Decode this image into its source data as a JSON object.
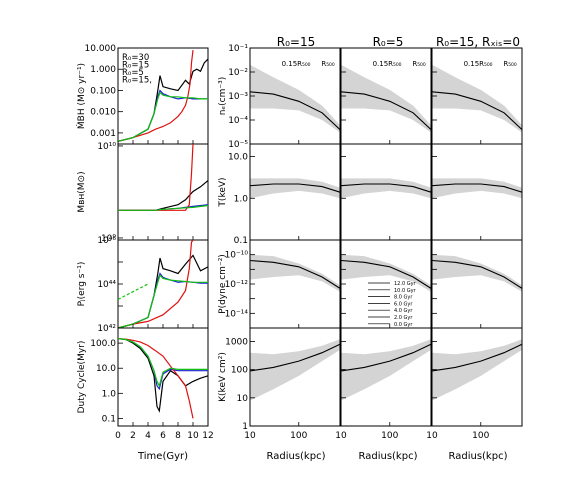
{
  "figure": {
    "column_titles": [
      "R₀=15",
      "R₀=5",
      "R₀=15,  Rₓᵢₛ=0"
    ],
    "left_xlabel": "Time(Gyr)",
    "right_xlabel": "Radius(kpc)",
    "marker_labels": [
      "0.15R₅₀₀",
      "R₅₀₀"
    ]
  },
  "chart_data": [
    {
      "type": "line",
      "panel": "mdot-bh",
      "ylabel": "ṀBH (M⊙ yr⁻¹)",
      "xlim": [
        0,
        12
      ],
      "ylim": [
        0.0003,
        10
      ],
      "yscale": "log",
      "xticks": [
        "0",
        "2",
        "4",
        "6",
        "8",
        "10",
        "12"
      ],
      "yticks": [
        "0.001",
        "0.010",
        "0.100",
        "1.000",
        "10.000"
      ],
      "legend": [
        "R₀=30",
        "R₀=15",
        "R₀=5",
        "R₀=15,"
      ],
      "series": [
        {
          "name": "R₀=30",
          "color": "#000000",
          "x": [
            0,
            2,
            4,
            4.8,
            5.3,
            5.6,
            6,
            7,
            8,
            9,
            9.5,
            10,
            10.5,
            11,
            11.5,
            12
          ],
          "y": [
            0.0004,
            0.0006,
            0.0015,
            0.008,
            0.1,
            0.5,
            0.15,
            0.12,
            0.1,
            0.3,
            0.2,
            0.8,
            1,
            0.8,
            2,
            3
          ]
        },
        {
          "name": "R₀=15",
          "color": "#1f1fd6",
          "x": [
            0,
            2,
            4,
            4.8,
            5.3,
            5.6,
            6,
            7,
            8,
            9,
            10,
            11,
            12
          ],
          "y": [
            0.0004,
            0.0006,
            0.0015,
            0.008,
            0.05,
            0.1,
            0.07,
            0.05,
            0.04,
            0.045,
            0.04,
            0.04,
            0.04
          ]
        },
        {
          "name": "R₀=5",
          "color": "#e01010",
          "x": [
            0,
            2,
            4,
            5,
            6,
            7,
            8,
            8.5,
            9,
            9.3,
            9.6,
            9.8,
            10
          ],
          "y": [
            0.0004,
            0.0006,
            0.001,
            0.0015,
            0.002,
            0.003,
            0.006,
            0.01,
            0.02,
            0.05,
            0.2,
            2,
            8
          ]
        },
        {
          "name": "R₀=15,",
          "color": "#10c010",
          "x": [
            0,
            2,
            4,
            4.8,
            5.3,
            5.6,
            6,
            7,
            8,
            9,
            10,
            11,
            12
          ],
          "y": [
            0.0004,
            0.0006,
            0.0015,
            0.008,
            0.04,
            0.08,
            0.06,
            0.05,
            0.05,
            0.045,
            0.045,
            0.04,
            0.04
          ]
        }
      ]
    },
    {
      "type": "line",
      "panel": "m-bh",
      "ylabel": "Mʙʜ(M⊙)",
      "xlim": [
        0,
        12
      ],
      "yscale": "log",
      "yticks": [
        "10⁹",
        "10¹⁰"
      ],
      "series": [
        {
          "name": "R₀=30",
          "color": "#000000",
          "x": [
            0,
            5,
            6,
            8,
            9,
            10,
            11,
            12
          ],
          "y": [
            2000000000.0,
            2000000000.0,
            2100000000.0,
            2300000000.0,
            2600000000.0,
            3200000000.0,
            3600000000.0,
            4200000000.0
          ]
        },
        {
          "name": "R₀=15",
          "color": "#1f1fd6",
          "x": [
            0,
            5,
            6,
            8,
            10,
            12
          ],
          "y": [
            2000000000.0,
            2000000000.0,
            2050000000.0,
            2100000000.0,
            2200000000.0,
            2300000000.0
          ]
        },
        {
          "name": "R₀=5",
          "color": "#e01010",
          "x": [
            0,
            9,
            9.5,
            9.8,
            10
          ],
          "y": [
            2000000000.0,
            2000000000.0,
            2300000000.0,
            5000000000.0,
            12000000000.0
          ]
        },
        {
          "name": "R₀=15,",
          "color": "#10c010",
          "x": [
            0,
            5,
            6,
            8,
            10,
            12
          ],
          "y": [
            2000000000.0,
            2000000000.0,
            2050000000.0,
            2100000000.0,
            2150000000.0,
            2250000000.0
          ]
        }
      ]
    },
    {
      "type": "line",
      "panel": "p-jet",
      "ylabel": "Pⱼ(erg s⁻¹)",
      "xlim": [
        0,
        12
      ],
      "ylim": [
        1e+42,
        1e+46
      ],
      "yscale": "log",
      "yticks": [
        "10⁴²",
        "10⁴⁴",
        "10⁴⁶"
      ],
      "series": [
        {
          "name": "R₀=30",
          "color": "#000000",
          "x": [
            0,
            2,
            4,
            4.8,
            5.3,
            5.6,
            6,
            7,
            8,
            9,
            10,
            11,
            12
          ],
          "y": [
            1e+42,
            1.5e+42,
            3e+42,
            3e+43,
            3e+44,
            1.5e+45,
            5e+44,
            4e+44,
            3e+44,
            8e+44,
            2e+45,
            4e+44,
            6e+44
          ]
        },
        {
          "name": "R₀=15",
          "color": "#1f1fd6",
          "x": [
            0,
            2,
            4,
            4.8,
            5.3,
            5.6,
            6,
            7,
            8,
            9,
            10,
            11,
            12
          ],
          "y": [
            1e+42,
            1.5e+42,
            3e+42,
            3e+43,
            1.5e+44,
            3e+44,
            2e+44,
            1.5e+44,
            1.2e+44,
            1.3e+44,
            1.2e+44,
            1.1e+44,
            1.1e+44
          ]
        },
        {
          "name": "R₀=5",
          "color": "#e01010",
          "x": [
            0,
            2,
            4,
            6,
            8,
            9,
            9.5,
            9.8,
            10
          ],
          "y": [
            1e+42,
            1.5e+42,
            2e+42,
            4e+42,
            1.5e+43,
            5e+43,
            5e+44,
            8e+45,
            1e+46
          ]
        },
        {
          "name": "R₀=15,",
          "color": "#10c010",
          "x": [
            0,
            2,
            4,
            4.8,
            5.3,
            5.6,
            6,
            7,
            8,
            9,
            10,
            11,
            12
          ],
          "y": [
            1e+42,
            1.5e+42,
            3e+42,
            3e+43,
            1.2e+44,
            2.5e+44,
            1.8e+44,
            1.5e+44,
            1.4e+44,
            1.3e+44,
            1.2e+44,
            1.2e+44,
            1.2e+44
          ]
        },
        {
          "name": "dashed",
          "color": "#10c010",
          "x": [
            0,
            4
          ],
          "y": [
            2e+43,
            1e+44
          ]
        }
      ]
    },
    {
      "type": "line",
      "panel": "duty-cycle",
      "ylabel": "Duty Cycle(Myr)",
      "xlim": [
        0,
        12
      ],
      "ylim": [
        0.05,
        400
      ],
      "yscale": "log",
      "yticks": [
        "0.1",
        "1.0",
        "10.0",
        "100.0"
      ],
      "series": [
        {
          "name": "R₀=30",
          "color": "#000000",
          "x": [
            0,
            1,
            2,
            3,
            4,
            4.8,
            5.2,
            5.5,
            6,
            7,
            8,
            9,
            10,
            11,
            12
          ],
          "y": [
            150,
            140,
            100,
            60,
            25,
            5,
            0.3,
            0.2,
            3,
            8,
            5,
            2,
            3,
            4,
            5
          ]
        },
        {
          "name": "R₀=15",
          "color": "#1f1fd6",
          "x": [
            0,
            1,
            2,
            3,
            4,
            4.8,
            5.2,
            5.5,
            6,
            7,
            8,
            9,
            10,
            11,
            12
          ],
          "y": [
            150,
            140,
            110,
            70,
            30,
            8,
            2,
            1.5,
            6,
            9,
            8,
            8,
            8,
            8,
            8
          ]
        },
        {
          "name": "R₀=5",
          "color": "#e01010",
          "x": [
            0,
            1,
            2,
            3,
            4,
            5,
            6,
            7,
            8,
            9,
            9.5,
            10
          ],
          "y": [
            150,
            145,
            130,
            110,
            80,
            50,
            30,
            12,
            5,
            2,
            0.5,
            0.1
          ]
        },
        {
          "name": "R₀=15,",
          "color": "#10c010",
          "x": [
            0,
            1,
            2,
            3,
            4,
            4.8,
            5.2,
            5.5,
            6,
            7,
            8,
            9,
            10,
            11,
            12
          ],
          "y": [
            150,
            140,
            110,
            70,
            30,
            8,
            3,
            2,
            7,
            10,
            9,
            9,
            9,
            9,
            9
          ]
        }
      ]
    },
    {
      "type": "line",
      "panel": "profiles",
      "xlim": [
        10,
        700
      ],
      "xscale": "log",
      "xticks": [
        "10",
        "100"
      ],
      "rows": [
        {
          "key": "ne",
          "ylabel": "nₑ(cm⁻³)",
          "ylim": [
            1e-05,
            0.1
          ],
          "yticks": [
            "10⁻⁵",
            "10⁻⁴",
            "10⁻³",
            "10⁻²",
            "10⁻¹"
          ]
        },
        {
          "key": "T",
          "ylabel": "T(keV)",
          "ylim": [
            0.1,
            20
          ],
          "yticks": [
            "0.1",
            "1.0",
            "10.0"
          ]
        },
        {
          "key": "P",
          "ylabel": "P(dyne cm⁻²)",
          "ylim": [
            1e-15,
            1e-09
          ],
          "yticks": [
            "10⁻¹⁴",
            "10⁻¹²",
            "10⁻¹⁰"
          ]
        },
        {
          "key": "K",
          "ylabel": "K(keV cm²)",
          "ylim": [
            1,
            3000
          ],
          "yticks": [
            "1",
            "10",
            "100",
            "1000"
          ]
        }
      ],
      "legend": [
        "12.0 Gyr",
        "10.0 Gyr",
        "8.0 Gyr",
        "6.0 Gyr",
        "4.0 Gyr",
        "2.0 Gyr",
        "0.0 Gyr"
      ],
      "series": [
        {
          "name": "0.0 Gyr",
          "style": "solid",
          "ne": {
            "x": [
              10,
              30,
              100,
              300,
              700
            ],
            "y": [
              0.0015,
              0.0012,
              0.0006,
              0.0002,
              4e-05
            ]
          },
          "T": {
            "x": [
              10,
              30,
              100,
              300,
              700
            ],
            "y": [
              2.0,
              2.2,
              2.2,
              1.9,
              1.4
            ]
          },
          "P": {
            "x": [
              10,
              30,
              100,
              300,
              700
            ],
            "y": [
              4e-11,
              3e-11,
              1.5e-11,
              3e-12,
              5e-13
            ]
          },
          "K": {
            "x": [
              10,
              30,
              100,
              300,
              700
            ],
            "y": [
              90,
              120,
              200,
              400,
              800
            ]
          }
        }
      ],
      "bands": {
        "ne": {
          "x": [
            10,
            30,
            100,
            300,
            700
          ],
          "low": [
            0.0003,
            0.0003,
            0.00025,
            0.0001,
            3e-05
          ],
          "high": [
            0.02,
            0.006,
            0.0018,
            0.0004,
            6e-05
          ]
        },
        "T": {
          "x": [
            10,
            30,
            100,
            300,
            700
          ],
          "low": [
            1.0,
            1.3,
            1.5,
            1.3,
            1.0
          ],
          "high": [
            3.0,
            3.0,
            3.0,
            2.5,
            1.8
          ]
        },
        "P": {
          "x": [
            10,
            30,
            100,
            300,
            700
          ],
          "low": [
            2e-12,
            3e-12,
            4e-12,
            1.5e-12,
            3e-13
          ],
          "high": [
            1e-10,
            8e-11,
            2.5e-11,
            5e-12,
            8e-13
          ]
        },
        "K": {
          "x": [
            10,
            30,
            100,
            300,
            700
          ],
          "low": [
            8,
            20,
            60,
            200,
            500
          ],
          "high": [
            400,
            350,
            450,
            700,
            1200
          ]
        }
      }
    }
  ]
}
